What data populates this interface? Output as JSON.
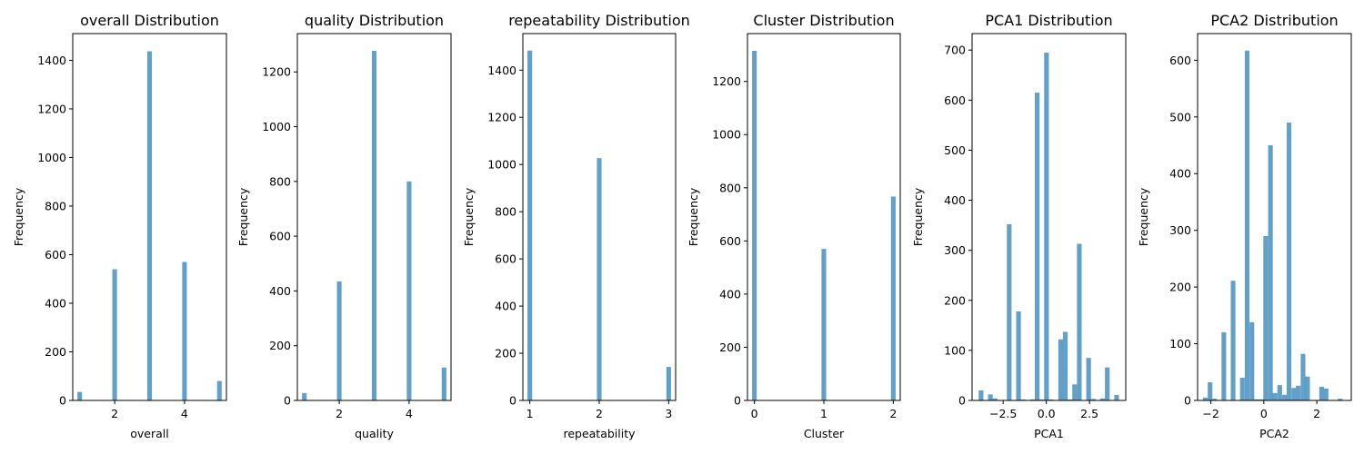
{
  "chart_data": [
    {
      "type": "bar",
      "title": "overall Distribution",
      "xlabel": "overall",
      "ylabel": "Frequency",
      "xlim": [
        0.8,
        5.2
      ],
      "ylim": [
        0,
        1510
      ],
      "xticks": [
        2,
        4
      ],
      "yticks": [
        0,
        200,
        400,
        600,
        800,
        1000,
        1200,
        1400
      ],
      "bar_width": 0.133,
      "bars": [
        {
          "x": 1.0,
          "value": 35
        },
        {
          "x": 2.0,
          "value": 540
        },
        {
          "x": 3.0,
          "value": 1437
        },
        {
          "x": 4.0,
          "value": 570
        },
        {
          "x": 5.0,
          "value": 80
        }
      ]
    },
    {
      "type": "bar",
      "title": "quality Distribution",
      "xlabel": "quality",
      "ylabel": "Frequency",
      "xlim": [
        0.8,
        5.2
      ],
      "ylim": [
        0,
        1340
      ],
      "xticks": [
        2,
        4
      ],
      "yticks": [
        0,
        200,
        400,
        600,
        800,
        1000,
        1200
      ],
      "bar_width": 0.133,
      "bars": [
        {
          "x": 1.0,
          "value": 27
        },
        {
          "x": 2.0,
          "value": 435
        },
        {
          "x": 3.0,
          "value": 1277
        },
        {
          "x": 4.0,
          "value": 800
        },
        {
          "x": 5.0,
          "value": 120
        }
      ]
    },
    {
      "type": "bar",
      "title": "repeatability Distribution",
      "xlabel": "repeatability",
      "ylabel": "Frequency",
      "xlim": [
        0.9,
        3.1
      ],
      "ylim": [
        0,
        1555
      ],
      "xticks": [
        1,
        2,
        3
      ],
      "yticks": [
        0,
        200,
        400,
        600,
        800,
        1000,
        1200,
        1400
      ],
      "bar_width": 0.067,
      "bars": [
        {
          "x": 1.0,
          "value": 1483
        },
        {
          "x": 2.0,
          "value": 1027
        },
        {
          "x": 3.0,
          "value": 142
        }
      ]
    },
    {
      "type": "bar",
      "title": "Cluster Distribution",
      "xlabel": "Cluster",
      "ylabel": "Frequency",
      "xlim": [
        -0.1,
        2.1
      ],
      "ylim": [
        0,
        1380
      ],
      "xticks": [
        0,
        1,
        2
      ],
      "yticks": [
        0,
        200,
        400,
        600,
        800,
        1000,
        1200
      ],
      "bar_width": 0.067,
      "bars": [
        {
          "x": 0.0,
          "value": 1315
        },
        {
          "x": 1.0,
          "value": 570
        },
        {
          "x": 2.0,
          "value": 767
        }
      ]
    },
    {
      "type": "bar",
      "title": "PCA1 Distribution",
      "xlabel": "PCA1",
      "ylabel": "Frequency",
      "xlim": [
        -4.3,
        4.6
      ],
      "ylim": [
        0,
        733
      ],
      "xticks": [
        -2.5,
        0.0,
        2.5
      ],
      "ytick_values": [
        0,
        100,
        200,
        300,
        400,
        500,
        600,
        700
      ],
      "xtick_labels": [
        "−2.5",
        "0.0",
        "2.5"
      ],
      "bar_width": 0.272,
      "bars": [
        {
          "x": -3.78,
          "value": 20
        },
        {
          "x": -3.24,
          "value": 12
        },
        {
          "x": -2.97,
          "value": 4
        },
        {
          "x": -2.15,
          "value": 352
        },
        {
          "x": -1.61,
          "value": 178
        },
        {
          "x": -1.34,
          "value": 2
        },
        {
          "x": -0.8,
          "value": 2
        },
        {
          "x": -0.53,
          "value": 615
        },
        {
          "x": -0.26,
          "value": 2
        },
        {
          "x": 0.01,
          "value": 695
        },
        {
          "x": 0.28,
          "value": 2
        },
        {
          "x": 0.83,
          "value": 122
        },
        {
          "x": 1.1,
          "value": 137
        },
        {
          "x": 1.37,
          "value": 2
        },
        {
          "x": 1.64,
          "value": 32
        },
        {
          "x": 1.91,
          "value": 313
        },
        {
          "x": 2.45,
          "value": 85
        },
        {
          "x": 2.72,
          "value": 3
        },
        {
          "x": 3.26,
          "value": 4
        },
        {
          "x": 3.53,
          "value": 66
        },
        {
          "x": 4.07,
          "value": 11
        }
      ]
    },
    {
      "type": "bar",
      "title": "PCA2 Distribution",
      "xlabel": "PCA2",
      "ylabel": "Frequency",
      "xlim": [
        -2.5,
        3.3
      ],
      "ylim": [
        0,
        647
      ],
      "xticks": [
        -2,
        0,
        2
      ],
      "xtick_labels": [
        "−2",
        "0",
        "2"
      ],
      "ytick_values": [
        0,
        100,
        200,
        300,
        400,
        500,
        600
      ],
      "bar_width": 0.176,
      "bars": [
        {
          "x": -2.21,
          "value": 5
        },
        {
          "x": -2.03,
          "value": 32
        },
        {
          "x": -1.86,
          "value": 3
        },
        {
          "x": -1.51,
          "value": 120
        },
        {
          "x": -1.16,
          "value": 211
        },
        {
          "x": -0.81,
          "value": 40
        },
        {
          "x": -0.63,
          "value": 617
        },
        {
          "x": -0.45,
          "value": 138
        },
        {
          "x": -0.28,
          "value": 2
        },
        {
          "x": -0.1,
          "value": 2
        },
        {
          "x": 0.07,
          "value": 290
        },
        {
          "x": 0.25,
          "value": 450
        },
        {
          "x": 0.42,
          "value": 13
        },
        {
          "x": 0.6,
          "value": 27
        },
        {
          "x": 0.78,
          "value": 10
        },
        {
          "x": 0.95,
          "value": 490
        },
        {
          "x": 1.13,
          "value": 22
        },
        {
          "x": 1.3,
          "value": 26
        },
        {
          "x": 1.48,
          "value": 82
        },
        {
          "x": 1.65,
          "value": 42
        },
        {
          "x": 2.18,
          "value": 24
        },
        {
          "x": 2.35,
          "value": 21
        },
        {
          "x": 2.88,
          "value": 3
        }
      ]
    }
  ]
}
